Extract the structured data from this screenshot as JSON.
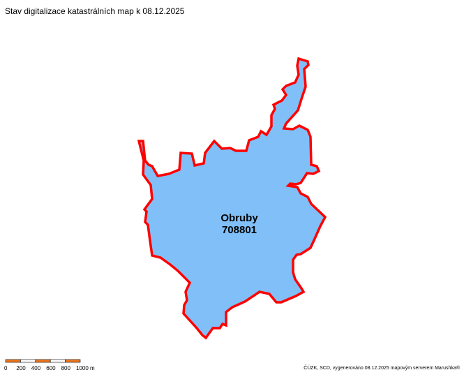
{
  "title": "Stav digitalizace katastrálních map k 08.12.2025",
  "parcel": {
    "name": "Obruby",
    "code": "708801",
    "fill_color": "#80bff8",
    "border_color": "#ff0000"
  },
  "scale_bar": {
    "ticks": [
      "0",
      "200",
      "400",
      "600",
      "800",
      "1000 m"
    ],
    "colors": [
      "#f07820",
      "#ffffff"
    ]
  },
  "footer": "ČÚZK, SCD, vygenerováno 08.12.2025 mapovým serverem Marushka®"
}
